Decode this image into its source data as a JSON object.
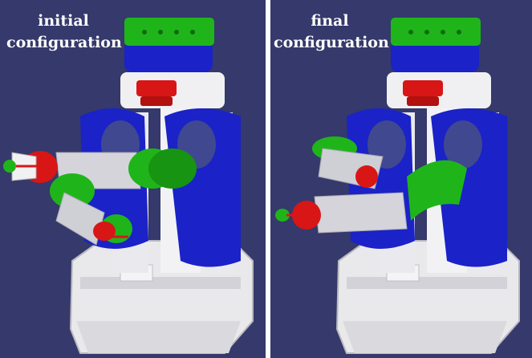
{
  "figure": {
    "panels": [
      {
        "id": "initial",
        "caption_line1": "initial",
        "caption_line2": "configuration"
      },
      {
        "id": "final",
        "caption_line1": "final",
        "caption_line2": "configuration"
      }
    ]
  },
  "colors": {
    "background": "#35396b",
    "divider": "#ffffff",
    "robot_white": "#e9e9ec",
    "robot_blue": "#1a22c8",
    "robot_green": "#1fb51a",
    "robot_red": "#d81616",
    "robot_grey": "#c9c9cf"
  }
}
